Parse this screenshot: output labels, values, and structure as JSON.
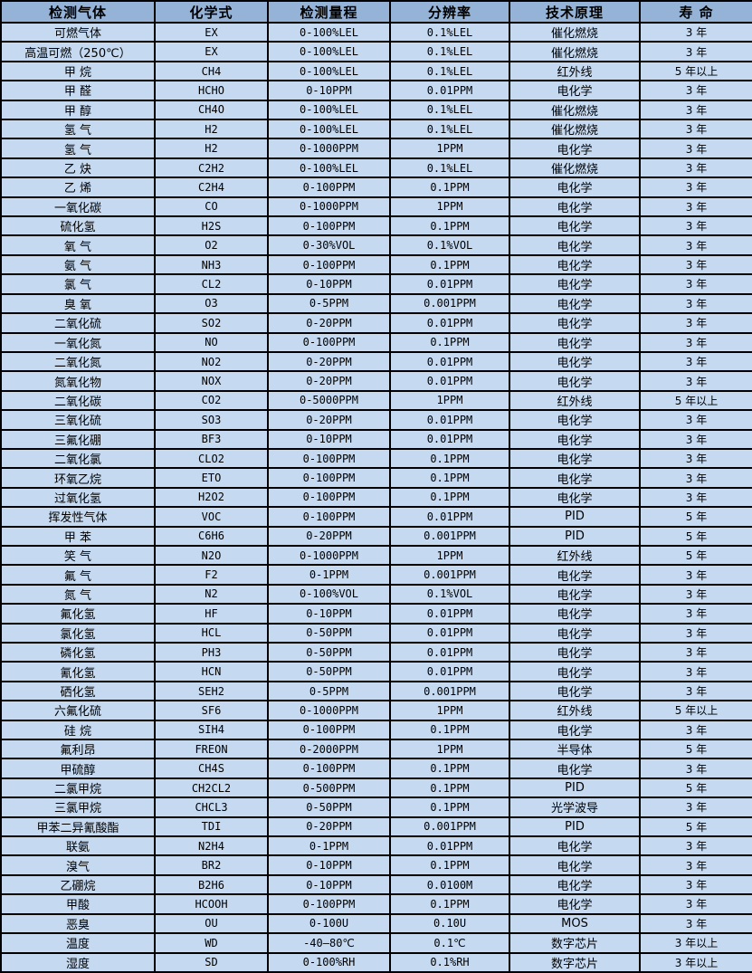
{
  "colors": {
    "header_bg": "#95b3d7",
    "row_bg": "#c5d9f1",
    "border": "#000000",
    "text": "#000000"
  },
  "table": {
    "headers": [
      "检测气体",
      "化学式",
      "检测量程",
      "分辨率",
      "技术原理",
      "寿 命"
    ],
    "rows": [
      [
        "可燃气体",
        "EX",
        "0-100%LEL",
        "0.1%LEL",
        "催化燃烧",
        "3 年"
      ],
      [
        "高温可燃（250℃）",
        "EX",
        "0-100%LEL",
        "0.1%LEL",
        "催化燃烧",
        "3 年"
      ],
      [
        "甲 烷",
        "CH4",
        "0-100%LEL",
        "0.1%LEL",
        "红外线",
        "5 年以上"
      ],
      [
        "甲 醛",
        "HCHO",
        "0-10PPM",
        "0.01PPM",
        "电化学",
        "3 年"
      ],
      [
        "甲 醇",
        "CH4O",
        "0-100%LEL",
        "0.1%LEL",
        "催化燃烧",
        "3 年"
      ],
      [
        "氢 气",
        "H2",
        "0-100%LEL",
        "0.1%LEL",
        "催化燃烧",
        "3 年"
      ],
      [
        "氢 气",
        "H2",
        "0-1000PPM",
        "1PPM",
        "电化学",
        "3 年"
      ],
      [
        "乙 炔",
        "C2H2",
        "0-100%LEL",
        "0.1%LEL",
        "催化燃烧",
        "3 年"
      ],
      [
        "乙 烯",
        "C2H4",
        "0-100PPM",
        "0.1PPM",
        "电化学",
        "3 年"
      ],
      [
        "一氧化碳",
        "CO",
        "0-1000PPM",
        "1PPM",
        "电化学",
        "3 年"
      ],
      [
        "硫化氢",
        "H2S",
        "0-100PPM",
        "0.1PPM",
        "电化学",
        "3 年"
      ],
      [
        "氧 气",
        "O2",
        "0-30%VOL",
        "0.1%VOL",
        "电化学",
        "3 年"
      ],
      [
        "氨 气",
        "NH3",
        "0-100PPM",
        "0.1PPM",
        "电化学",
        "3 年"
      ],
      [
        "氯 气",
        "CL2",
        "0-10PPM",
        "0.01PPM",
        "电化学",
        "3 年"
      ],
      [
        "臭 氧",
        "O3",
        "0-5PPM",
        "0.001PPM",
        "电化学",
        "3 年"
      ],
      [
        "二氧化硫",
        "SO2",
        "0-20PPM",
        "0.01PPM",
        "电化学",
        "3 年"
      ],
      [
        "一氧化氮",
        "NO",
        "0-100PPM",
        "0.1PPM",
        "电化学",
        "3 年"
      ],
      [
        "二氧化氮",
        "NO2",
        "0-20PPM",
        "0.01PPM",
        "电化学",
        "3 年"
      ],
      [
        "氮氧化物",
        "NOX",
        "0-20PPM",
        "0.01PPM",
        "电化学",
        "3 年"
      ],
      [
        "二氧化碳",
        "CO2",
        "0-5000PPM",
        "1PPM",
        "红外线",
        "5 年以上"
      ],
      [
        "三氧化硫",
        "SO3",
        "0-20PPM",
        "0.01PPM",
        "电化学",
        "3 年"
      ],
      [
        "三氟化硼",
        "BF3",
        "0-10PPM",
        "0.01PPM",
        "电化学",
        "3 年"
      ],
      [
        "二氧化氯",
        "CLO2",
        "0-100PPM",
        "0.1PPM",
        "电化学",
        "3 年"
      ],
      [
        "环氧乙烷",
        "ETO",
        "0-100PPM",
        "0.1PPM",
        "电化学",
        "3 年"
      ],
      [
        "过氧化氢",
        "H2O2",
        "0-100PPM",
        "0.1PPM",
        "电化学",
        "3 年"
      ],
      [
        "挥发性气体",
        "VOC",
        "0-100PPM",
        "0.01PPM",
        "PID",
        "5 年"
      ],
      [
        "甲 苯",
        "C6H6",
        "0-20PPM",
        "0.001PPM",
        "PID",
        "5 年"
      ],
      [
        "笑 气",
        "N2O",
        "0-1000PPM",
        "1PPM",
        "红外线",
        "5 年"
      ],
      [
        "氟 气",
        "F2",
        "0-1PPM",
        "0.001PPM",
        "电化学",
        "3 年"
      ],
      [
        "氮 气",
        "N2",
        "0-100%VOL",
        "0.1%VOL",
        "电化学",
        "3 年"
      ],
      [
        "氟化氢",
        "HF",
        "0-10PPM",
        "0.01PPM",
        "电化学",
        "3 年"
      ],
      [
        "氯化氢",
        "HCL",
        "0-50PPM",
        "0.01PPM",
        "电化学",
        "3 年"
      ],
      [
        "磷化氢",
        "PH3",
        "0-50PPM",
        "0.01PPM",
        "电化学",
        "3 年"
      ],
      [
        "氰化氢",
        "HCN",
        "0-50PPM",
        "0.01PPM",
        "电化学",
        "3 年"
      ],
      [
        "硒化氢",
        "SEH2",
        "0-5PPM",
        "0.001PPM",
        "电化学",
        "3 年"
      ],
      [
        "六氟化硫",
        "SF6",
        "0-1000PPM",
        "1PPM",
        "红外线",
        "5 年以上"
      ],
      [
        "硅 烷",
        "SIH4",
        "0-100PPM",
        "0.1PPM",
        "电化学",
        "3 年"
      ],
      [
        "氟利昂",
        "FREON",
        "0-2000PPM",
        "1PPM",
        "半导体",
        "5 年"
      ],
      [
        "甲硫醇",
        "CH4S",
        "0-100PPM",
        "0.1PPM",
        "电化学",
        "3 年"
      ],
      [
        "二氯甲烷",
        "CH2CL2",
        "0-500PPM",
        "0.1PPM",
        "PID",
        "5 年"
      ],
      [
        "三氯甲烷",
        "CHCL3",
        "0-50PPM",
        "0.1PPM",
        "光学波导",
        "3 年"
      ],
      [
        "甲苯二异氰酸酯",
        "TDI",
        "0-20PPM",
        "0.001PPM",
        "PID",
        "5 年"
      ],
      [
        "联氨",
        "N2H4",
        "0-1PPM",
        "0.01PPM",
        "电化学",
        "3 年"
      ],
      [
        "溴气",
        "BR2",
        "0-10PPM",
        "0.1PPM",
        "电化学",
        "3 年"
      ],
      [
        "乙硼烷",
        "B2H6",
        "0-10PPM",
        "0.0100M",
        "电化学",
        "3 年"
      ],
      [
        "甲酸",
        "HCOOH",
        "0-100PPM",
        "0.1PPM",
        "电化学",
        "3 年"
      ],
      [
        "恶臭",
        "OU",
        "0-100U",
        "0.10U",
        "MOS",
        "3 年"
      ],
      [
        "温度",
        "WD",
        "-40—80℃",
        "0.1℃",
        "数字芯片",
        "3 年以上"
      ],
      [
        "湿度",
        "SD",
        "0-100%RH",
        "0.1%RH",
        "数字芯片",
        "3 年以上"
      ]
    ]
  }
}
